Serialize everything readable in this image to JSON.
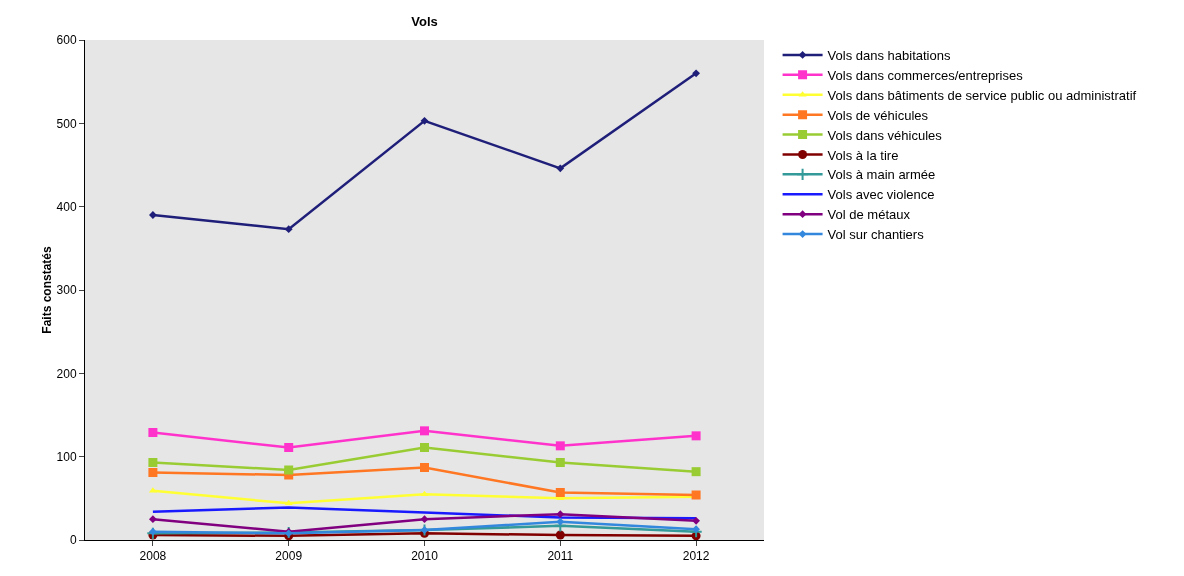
{
  "chart_data": {
    "type": "line",
    "title": "Vols",
    "ylabel": "Faits constatés",
    "categories": [
      "2008",
      "2009",
      "2010",
      "2011",
      "2012"
    ],
    "ylim": [
      0,
      600
    ],
    "yticks": [
      0,
      100,
      200,
      300,
      400,
      500,
      600
    ],
    "grid": false,
    "legend": "right",
    "series": [
      {
        "name": "Vols dans habitations",
        "color": "#1f1f7a",
        "marker": "diamond",
        "values": [
          390,
          373,
          503,
          446,
          560
        ]
      },
      {
        "name": "Vols dans commerces/entreprises",
        "color": "#ff33cc",
        "marker": "square",
        "values": [
          129,
          111,
          131,
          113,
          125
        ]
      },
      {
        "name": "Vols dans bâtiments de service public ou administratif",
        "color": "#ffff33",
        "marker": "triangle",
        "values": [
          59,
          44,
          55,
          50,
          52
        ]
      },
      {
        "name": "Vols de véhicules",
        "color": "#ff7722",
        "marker": "square",
        "values": [
          81,
          78,
          87,
          57,
          54
        ]
      },
      {
        "name": "Vols dans véhicules",
        "color": "#99cc33",
        "marker": "square",
        "values": [
          93,
          84,
          111,
          93,
          82
        ]
      },
      {
        "name": "Vols à la tire",
        "color": "#800000",
        "marker": "circle",
        "values": [
          6,
          5,
          8,
          6,
          5
        ]
      },
      {
        "name": "Vols à main armée",
        "color": "#339999",
        "marker": "cross",
        "values": [
          8,
          9,
          12,
          17,
          10
        ]
      },
      {
        "name": "Vols avec violence",
        "color": "#1a1aff",
        "marker": "none",
        "values": [
          34,
          39,
          33,
          27,
          26
        ]
      },
      {
        "name": "Vol de métaux",
        "color": "#800080",
        "marker": "diamond",
        "values": [
          25,
          10,
          25,
          31,
          23
        ]
      },
      {
        "name": "Vol sur chantiers",
        "color": "#3388dd",
        "marker": "diamond",
        "values": [
          10,
          8,
          12,
          22,
          13
        ]
      }
    ]
  }
}
